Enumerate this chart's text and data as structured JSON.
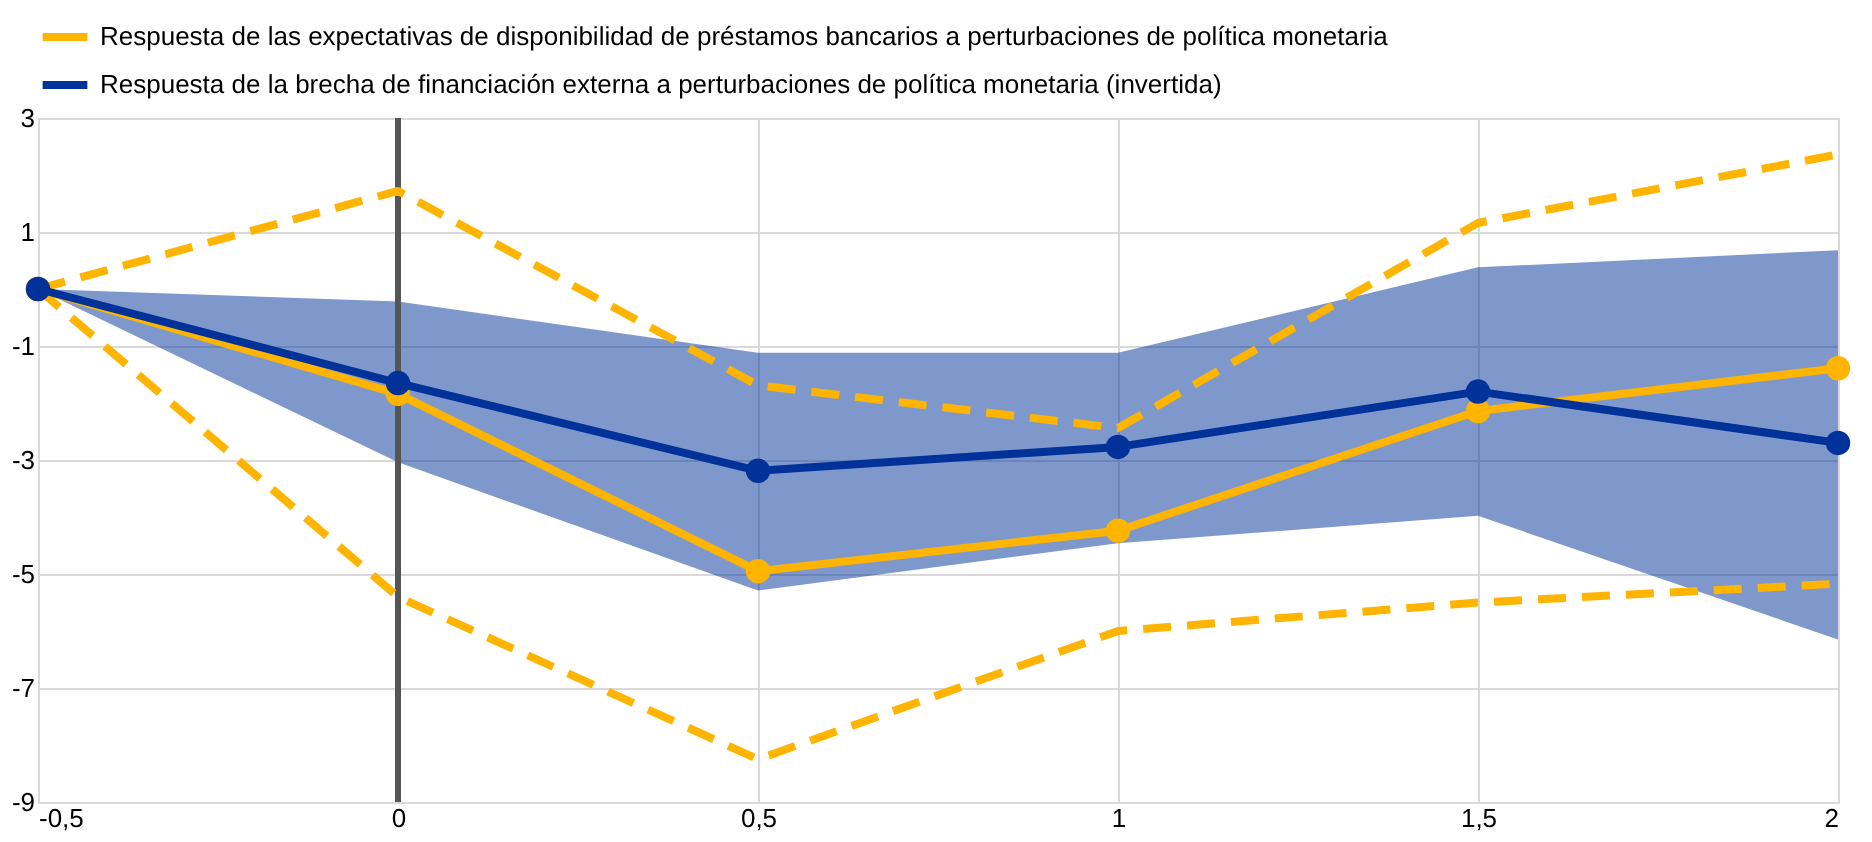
{
  "chart_data": {
    "type": "line",
    "x": [
      -0.5,
      0,
      0.5,
      1,
      1.5,
      2
    ],
    "xlim": [
      -0.5,
      2
    ],
    "xticks": [
      {
        "value": -0.5,
        "label": "-0,5"
      },
      0,
      {
        "value": 0.5,
        "label": "0,5"
      },
      1,
      {
        "value": 1.5,
        "label": "1,5"
      },
      2
    ],
    "ylim": [
      -9,
      3
    ],
    "yticks": [
      -9,
      -7,
      -5,
      -3,
      -1,
      1,
      3
    ],
    "grid": true,
    "legend": "top left",
    "line_style": "solid",
    "marker": "circle",
    "series": [
      {
        "name": "Respuesta de las expectativas de disponibilidad de préstamos bancarios a perturbaciones de política monetaria",
        "color": "#ffb400",
        "values": [
          0,
          -1.84,
          -4.95,
          -4.24,
          -2.14,
          -1.39
        ]
      },
      {
        "name": "Respuesta de la brecha de financiación externa a perturbaciones de política monetaria (invertida)",
        "color": "#003299",
        "values": [
          0,
          -1.65,
          -3.19,
          -2.77,
          -1.8,
          -2.7
        ],
        "lower": [
          0,
          -3.04,
          -5.29,
          -4.46,
          -3.98,
          -6.15
        ],
        "upper": [
          0,
          -0.22,
          -1.12,
          -1.12,
          0.38,
          0.68
        ]
      },
      {
        "color": "#ffb400",
        "values": [
          0,
          1.72,
          -1.69,
          -2.44,
          1.16,
          2.36
        ],
        "line_style": "dashed",
        "marker": "none"
      },
      {
        "color": "#ffb400",
        "values": [
          0,
          -5.4,
          -8.25,
          -6.0,
          -5.5,
          -5.17
        ],
        "line_style": "dashed",
        "marker": "none"
      }
    ],
    "ref_lines": [
      {
        "axis": "x",
        "value": 0,
        "color": "#555555"
      }
    ]
  }
}
